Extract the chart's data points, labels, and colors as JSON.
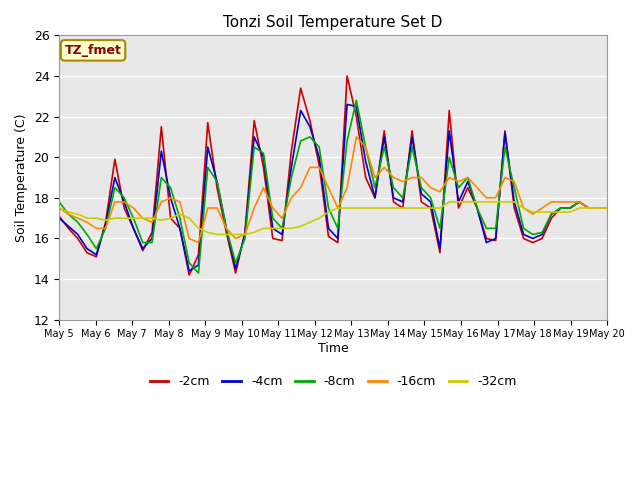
{
  "title": "Tonzi Soil Temperature Set D",
  "xlabel": "Time",
  "ylabel": "Soil Temperature (C)",
  "ylim": [
    12,
    26
  ],
  "xlim_days": [
    5,
    20
  ],
  "annotation_text": "TZ_fmet",
  "annotation_bg": "#ffffcc",
  "annotation_border": "#aa8800",
  "annotation_text_color": "#880000",
  "series_colors": [
    "#cc0000",
    "#0000cc",
    "#00aa00",
    "#ff8800",
    "#cccc00"
  ],
  "series_labels": [
    "-2cm",
    "-4cm",
    "-8cm",
    "-16cm",
    "-32cm"
  ],
  "background_color": "#e8e8e8",
  "grid_color": "#ffffff",
  "x_tick_labels": [
    "May 5",
    "May 6",
    "May 7",
    "May 8",
    "May 9",
    "May 10",
    "May 11",
    "May 12",
    "May 13",
    "May 14",
    "May 15",
    "May 16",
    "May 17",
    "May 18",
    "May 19",
    "May 20"
  ],
  "data_2cm": [
    17.1,
    16.5,
    16.0,
    15.3,
    15.1,
    16.8,
    19.9,
    17.5,
    16.5,
    15.4,
    16.3,
    21.5,
    17.0,
    16.5,
    14.2,
    15.2,
    21.7,
    18.5,
    16.3,
    14.3,
    16.3,
    21.8,
    19.5,
    16.0,
    15.9,
    20.3,
    23.4,
    21.8,
    19.6,
    16.1,
    15.8,
    24.0,
    22.0,
    19.0,
    18.0,
    21.3,
    17.8,
    17.5,
    21.3,
    17.8,
    17.5,
    15.3,
    22.3,
    17.5,
    18.5,
    17.5,
    16.0,
    15.9,
    21.3,
    17.5,
    16.0,
    15.8,
    16.0,
    17.0,
    17.5,
    17.5,
    17.8,
    17.5,
    17.5,
    17.5
  ],
  "data_4cm": [
    17.0,
    16.6,
    16.2,
    15.5,
    15.2,
    16.7,
    19.0,
    17.8,
    16.5,
    15.5,
    16.0,
    20.3,
    18.0,
    16.5,
    14.4,
    14.7,
    20.5,
    18.8,
    16.5,
    14.5,
    16.2,
    21.0,
    20.0,
    16.5,
    16.2,
    19.5,
    22.3,
    21.5,
    20.0,
    16.5,
    16.0,
    22.6,
    22.5,
    19.8,
    18.0,
    21.0,
    18.0,
    17.8,
    21.0,
    18.2,
    17.8,
    15.5,
    21.3,
    17.8,
    18.8,
    17.5,
    15.8,
    16.0,
    21.2,
    17.8,
    16.2,
    16.0,
    16.2,
    17.2,
    17.5,
    17.5,
    17.8,
    17.5,
    17.5,
    17.5
  ],
  "data_8cm": [
    17.8,
    17.2,
    16.8,
    16.2,
    15.5,
    16.5,
    18.5,
    18.0,
    17.0,
    15.8,
    15.8,
    19.0,
    18.5,
    17.0,
    14.8,
    14.3,
    19.5,
    18.8,
    16.5,
    14.8,
    16.0,
    20.5,
    20.2,
    17.0,
    16.5,
    19.0,
    20.8,
    21.0,
    20.5,
    17.5,
    16.5,
    20.8,
    22.8,
    20.5,
    18.5,
    20.5,
    18.5,
    18.0,
    20.5,
    18.5,
    18.0,
    16.5,
    20.0,
    18.5,
    19.0,
    17.5,
    16.5,
    16.5,
    20.5,
    18.5,
    16.5,
    16.2,
    16.3,
    17.2,
    17.5,
    17.5,
    17.8,
    17.5,
    17.5,
    17.5
  ],
  "data_16cm": [
    17.5,
    17.2,
    17.0,
    16.8,
    16.5,
    16.5,
    17.8,
    17.8,
    17.5,
    17.0,
    16.8,
    17.8,
    18.0,
    17.8,
    16.0,
    15.8,
    17.5,
    17.5,
    16.5,
    16.0,
    16.2,
    17.5,
    18.5,
    17.5,
    17.0,
    18.0,
    18.5,
    19.5,
    19.5,
    18.5,
    17.5,
    18.5,
    21.0,
    20.5,
    19.0,
    19.5,
    19.0,
    18.8,
    19.0,
    19.0,
    18.5,
    18.3,
    19.0,
    18.8,
    19.0,
    18.5,
    18.0,
    18.0,
    19.0,
    18.8,
    17.5,
    17.2,
    17.5,
    17.8,
    17.8,
    17.8,
    17.8,
    17.5,
    17.5,
    17.5
  ],
  "data_32cm": [
    17.5,
    17.3,
    17.2,
    17.0,
    17.0,
    16.9,
    17.0,
    17.0,
    17.0,
    17.0,
    17.0,
    16.9,
    17.0,
    17.2,
    17.0,
    16.5,
    16.3,
    16.2,
    16.2,
    16.2,
    16.2,
    16.3,
    16.5,
    16.5,
    16.5,
    16.5,
    16.6,
    16.8,
    17.0,
    17.3,
    17.5,
    17.5,
    17.5,
    17.5,
    17.5,
    17.5,
    17.5,
    17.5,
    17.5,
    17.5,
    17.5,
    17.5,
    17.8,
    17.8,
    17.8,
    17.8,
    17.8,
    17.8,
    17.8,
    17.8,
    17.5,
    17.3,
    17.3,
    17.3,
    17.3,
    17.3,
    17.5,
    17.5,
    17.5,
    17.5
  ]
}
